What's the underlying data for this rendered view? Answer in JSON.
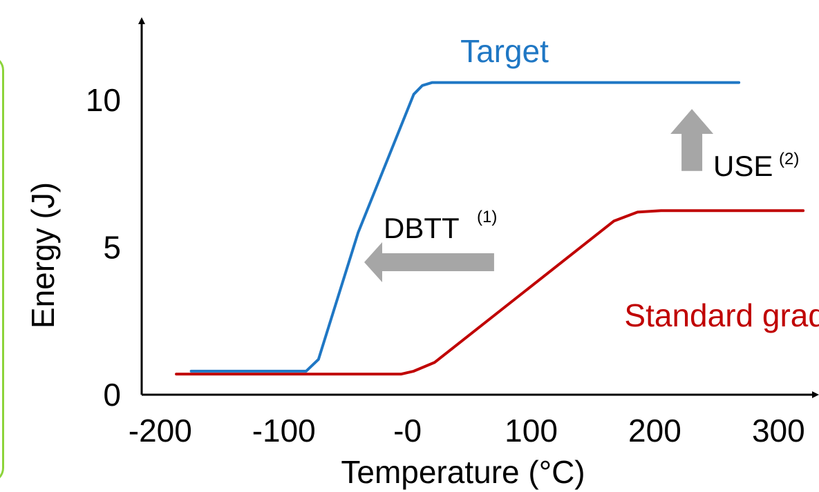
{
  "chart_data": {
    "type": "line",
    "xlabel": "Temperature (°C)",
    "ylabel": "Energy (J)",
    "xlim": [
      -215,
      330
    ],
    "ylim": [
      0,
      12.7
    ],
    "x_ticks": [
      {
        "value": -200,
        "label": "-200"
      },
      {
        "value": -100,
        "label": "-100"
      },
      {
        "value": 0,
        "label": "-0"
      },
      {
        "value": 100,
        "label": "100"
      },
      {
        "value": 200,
        "label": "200"
      },
      {
        "value": 300,
        "label": "300"
      }
    ],
    "y_ticks": [
      {
        "value": 0,
        "label": "0"
      },
      {
        "value": 5,
        "label": "5"
      },
      {
        "value": 10,
        "label": "10"
      }
    ],
    "series": [
      {
        "name": "Target",
        "color": "#1f77c4",
        "points": [
          [
            -175,
            0.8
          ],
          [
            -82,
            0.8
          ],
          [
            -72,
            1.2
          ],
          [
            -40,
            5.5
          ],
          [
            5,
            10.2
          ],
          [
            12,
            10.5
          ],
          [
            20,
            10.6
          ],
          [
            268,
            10.6
          ]
        ]
      },
      {
        "name": "Standard grade",
        "color": "#c00000",
        "points": [
          [
            -187,
            0.7
          ],
          [
            -5,
            0.7
          ],
          [
            5,
            0.8
          ],
          [
            22,
            1.1
          ],
          [
            167,
            5.9
          ],
          [
            186,
            6.2
          ],
          [
            205,
            6.25
          ],
          [
            320,
            6.25
          ]
        ]
      }
    ],
    "annotations": [
      {
        "text": "DBTT",
        "sup": "(1)",
        "arrow": "left",
        "from": [
          70,
          4.5
        ],
        "to": [
          -35,
          4.5
        ]
      },
      {
        "text": "USE",
        "sup": "(2)",
        "arrow": "up",
        "from": [
          230,
          7.6
        ],
        "to": [
          230,
          9.7
        ]
      }
    ],
    "arrow_color": "#a6a6a6",
    "grid": false
  }
}
